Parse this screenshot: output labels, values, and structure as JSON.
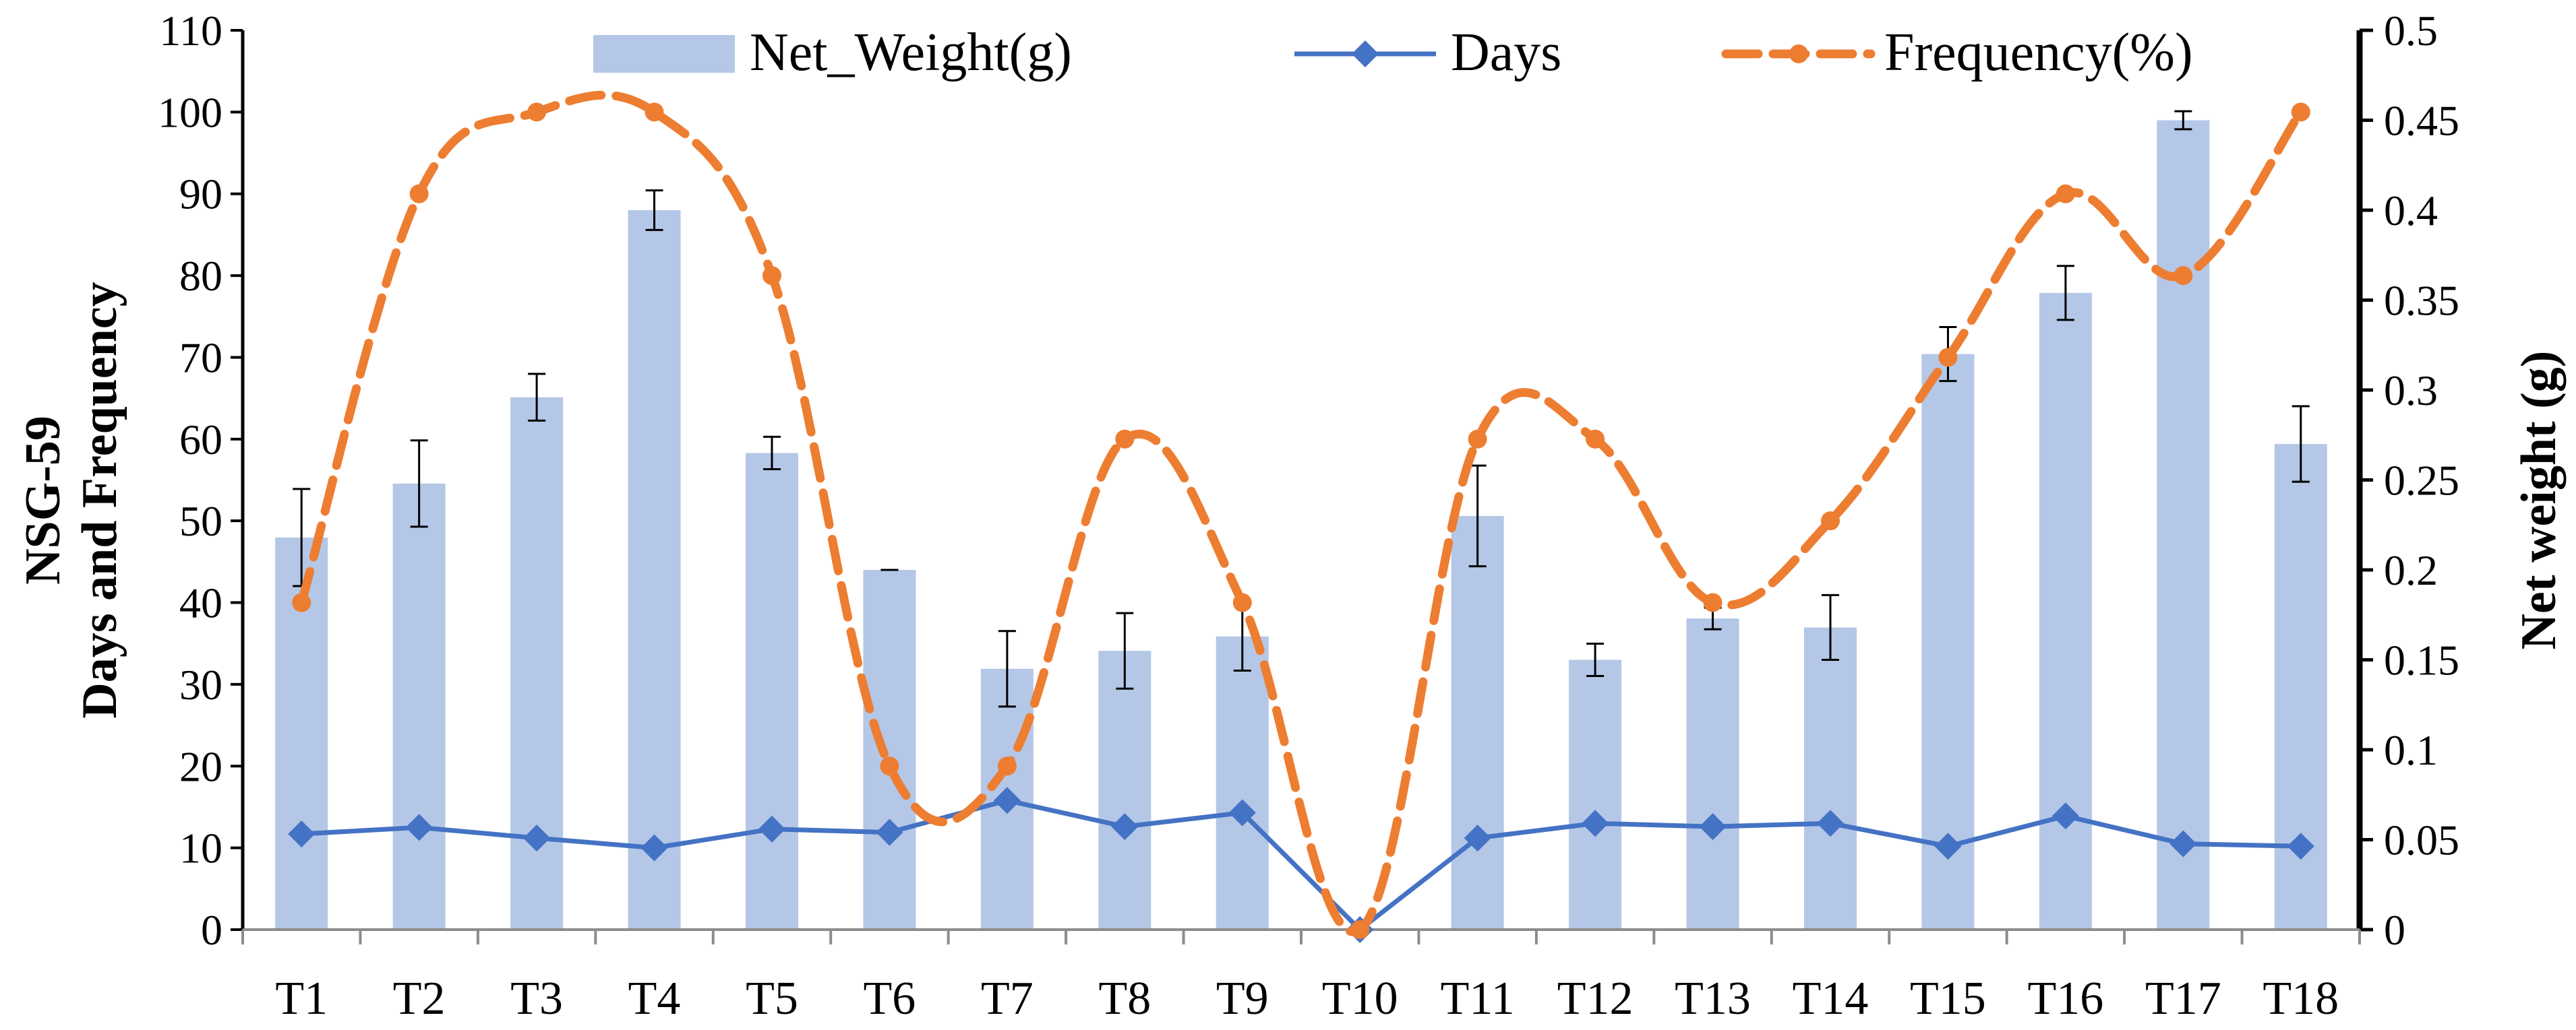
{
  "chart_data": {
    "type": "bar+line",
    "title": "",
    "categories": [
      "T1",
      "T2",
      "T3",
      "T4",
      "T5",
      "T6",
      "T7",
      "T8",
      "T9",
      "T10",
      "T11",
      "T12",
      "T13",
      "T14",
      "T15",
      "T16",
      "T17",
      "T18"
    ],
    "series": [
      {
        "name": "Net_Weight(g)",
        "kind": "bar",
        "axis": "right",
        "color": "#B4C7E7",
        "values": [
          0.218,
          0.248,
          0.296,
          0.4,
          0.265,
          0.2,
          0.145,
          0.155,
          0.163,
          0.0,
          0.23,
          0.15,
          0.173,
          0.168,
          0.32,
          0.354,
          0.45,
          0.27
        ],
        "error": [
          0.027,
          0.024,
          0.013,
          0.011,
          0.009,
          0.0,
          0.021,
          0.021,
          0.019,
          0.0,
          0.028,
          0.009,
          0.006,
          0.018,
          0.015,
          0.015,
          0.005,
          0.021
        ]
      },
      {
        "name": "Days",
        "kind": "line",
        "axis": "left",
        "color": "#4472C4",
        "values": [
          11.7,
          12.5,
          11.2,
          10.0,
          12.3,
          11.9,
          15.8,
          12.6,
          14.3,
          0,
          11.2,
          13.0,
          12.6,
          13.0,
          10.2,
          13.9,
          10.5,
          10.2
        ]
      },
      {
        "name": "Frequency(%)",
        "kind": "line-dashed",
        "axis": "left",
        "color": "#ED7D31",
        "values": [
          40,
          90,
          100,
          100,
          80,
          20,
          20,
          60,
          40,
          0,
          60,
          60,
          40,
          50,
          70,
          90,
          80,
          100
        ]
      }
    ],
    "ylabel_left": [
      "NSG-59",
      "Days and Frequency"
    ],
    "ylabel_right": "Net weight (g)",
    "xlabel": "",
    "ylim_left": [
      0,
      110
    ],
    "ylim_right": [
      0,
      0.5
    ],
    "yticks_left": [
      "0",
      "10",
      "20",
      "30",
      "40",
      "50",
      "60",
      "70",
      "80",
      "90",
      "100",
      "110"
    ],
    "yticks_right": [
      "0",
      "0.05",
      "0.1",
      "0.15",
      "0.2",
      "0.25",
      "0.3",
      "0.35",
      "0.4",
      "0.45",
      "0.5"
    ],
    "legend": {
      "position": "top",
      "labels": [
        "Net_Weight(g)",
        "Days",
        "Frequency(%)"
      ]
    },
    "grid": false
  }
}
